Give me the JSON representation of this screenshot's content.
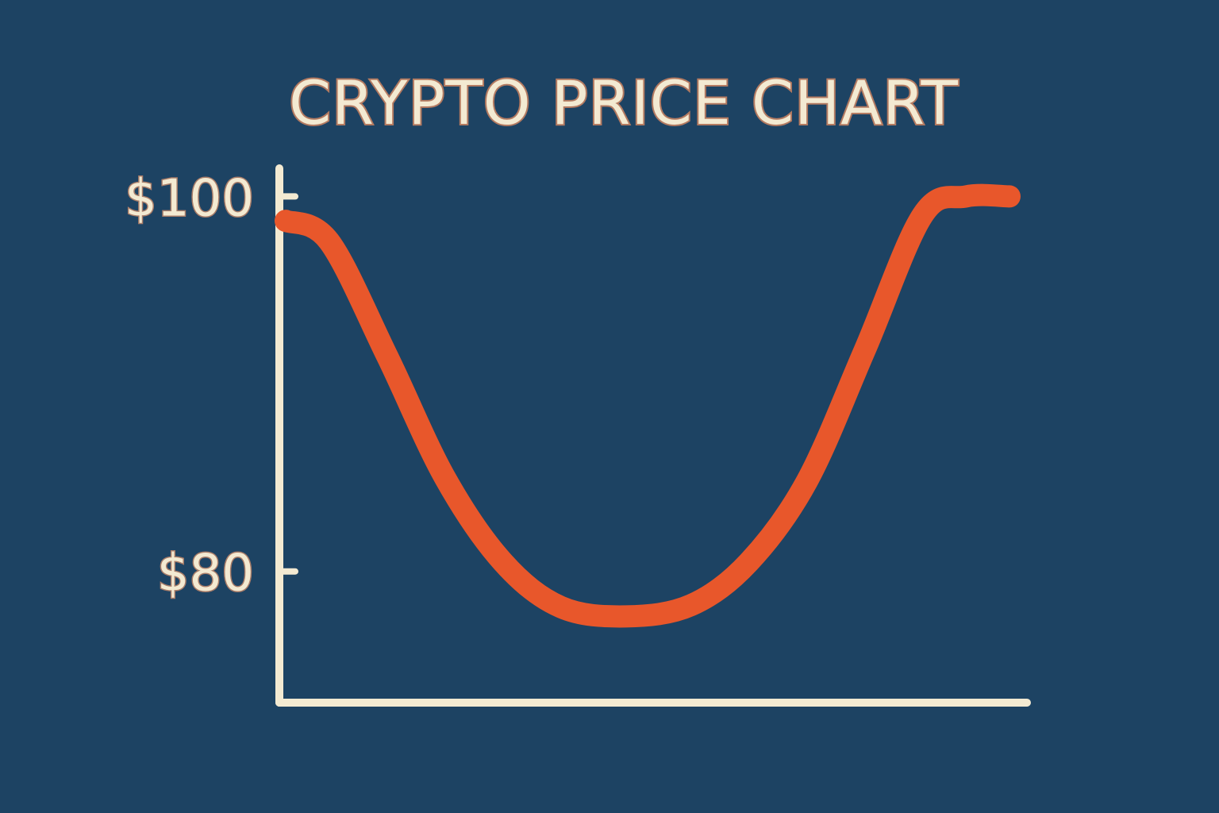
{
  "chart_data": {
    "type": "line",
    "title": "CRYPTO PRICE CHART",
    "xlabel": "",
    "ylabel": "",
    "y_ticks": [
      {
        "value": 100,
        "label": "$100"
      },
      {
        "value": 80,
        "label": "$80"
      }
    ],
    "ylim": [
      73,
      101.5
    ],
    "xlim": [
      0,
      1
    ],
    "grid": false,
    "legend": "none",
    "series": [
      {
        "points": [
          [
            0.0,
            98.7
          ],
          [
            0.06,
            97.6
          ],
          [
            0.14,
            91.5
          ],
          [
            0.22,
            85.0
          ],
          [
            0.3,
            80.5
          ],
          [
            0.38,
            78.1
          ],
          [
            0.47,
            77.6
          ],
          [
            0.56,
            78.2
          ],
          [
            0.64,
            80.5
          ],
          [
            0.72,
            84.8
          ],
          [
            0.8,
            91.8
          ],
          [
            0.88,
            99.0
          ],
          [
            0.94,
            100.0
          ],
          [
            1.0,
            100.0
          ]
        ]
      }
    ],
    "colors": {
      "background": "#1d4363",
      "axis": "#f3ead2",
      "line": "#e8572b",
      "text": "#f3ead2"
    }
  }
}
